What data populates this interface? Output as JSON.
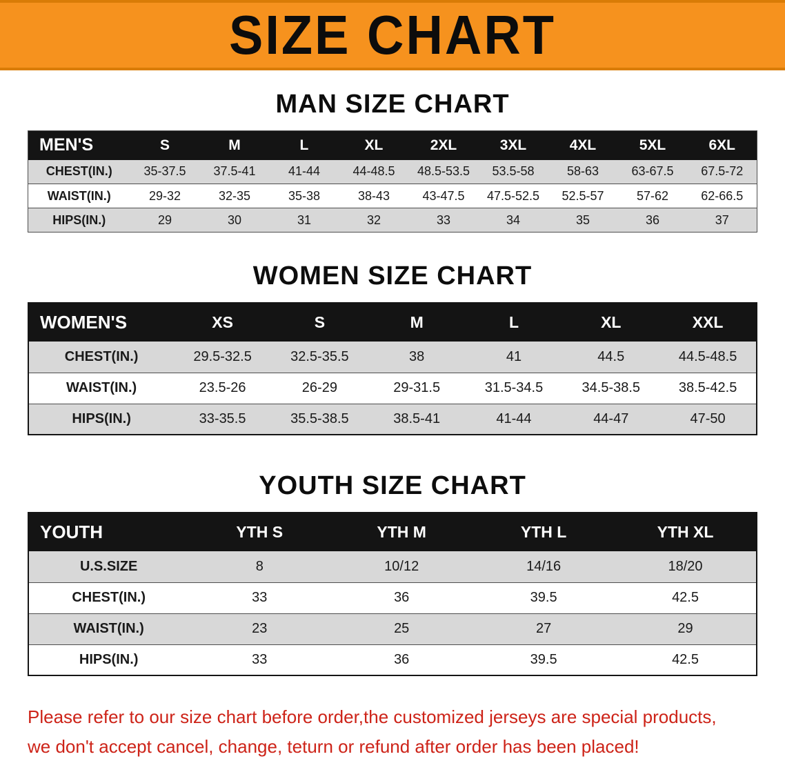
{
  "banner": {
    "title": "SIZE CHART"
  },
  "sections": {
    "men": {
      "heading": "MAN SIZE CHART",
      "table": {
        "header": [
          "MEN'S",
          "S",
          "M",
          "L",
          "XL",
          "2XL",
          "3XL",
          "4XL",
          "5XL",
          "6XL"
        ],
        "rows": [
          [
            "CHEST(IN.)",
            "35-37.5",
            "37.5-41",
            "41-44",
            "44-48.5",
            "48.5-53.5",
            "53.5-58",
            "58-63",
            "63-67.5",
            "67.5-72"
          ],
          [
            "WAIST(IN.)",
            "29-32",
            "32-35",
            "35-38",
            "38-43",
            "43-47.5",
            "47.5-52.5",
            "52.5-57",
            "57-62",
            "62-66.5"
          ],
          [
            "HIPS(IN.)",
            "29",
            "30",
            "31",
            "32",
            "33",
            "34",
            "35",
            "36",
            "37"
          ]
        ]
      }
    },
    "women": {
      "heading": "WOMEN SIZE CHART",
      "table": {
        "header": [
          "WOMEN'S",
          "XS",
          "S",
          "M",
          "L",
          "XL",
          "XXL"
        ],
        "rows": [
          [
            "CHEST(IN.)",
            "29.5-32.5",
            "32.5-35.5",
            "38",
            "41",
            "44.5",
            "44.5-48.5"
          ],
          [
            "WAIST(IN.)",
            "23.5-26",
            "26-29",
            "29-31.5",
            "31.5-34.5",
            "34.5-38.5",
            "38.5-42.5"
          ],
          [
            "HIPS(IN.)",
            "33-35.5",
            "35.5-38.5",
            "38.5-41",
            "41-44",
            "44-47",
            "47-50"
          ]
        ]
      }
    },
    "youth": {
      "heading": "YOUTH SIZE CHART",
      "table": {
        "header": [
          "YOUTH",
          "YTH S",
          "YTH M",
          "YTH L",
          "YTH XL"
        ],
        "rows": [
          [
            "U.S.SIZE",
            "8",
            "10/12",
            "14/16",
            "18/20"
          ],
          [
            "CHEST(IN.)",
            "33",
            "36",
            "39.5",
            "42.5"
          ],
          [
            "WAIST(IN.)",
            "23",
            "25",
            "27",
            "29"
          ],
          [
            "HIPS(IN.)",
            "33",
            "36",
            "39.5",
            "42.5"
          ]
        ]
      }
    }
  },
  "disclaimer": {
    "line1": "Please refer to our size chart before order,the customized jerseys are special products,",
    "line2": "we don't accept cancel, change, teturn or refund after order has been placed!"
  },
  "colors": {
    "banner_orange": "#f6921e",
    "table_header_black": "#141414",
    "row_stripe_gray": "#d8d8d8",
    "disclaimer_red": "#cd2318"
  }
}
